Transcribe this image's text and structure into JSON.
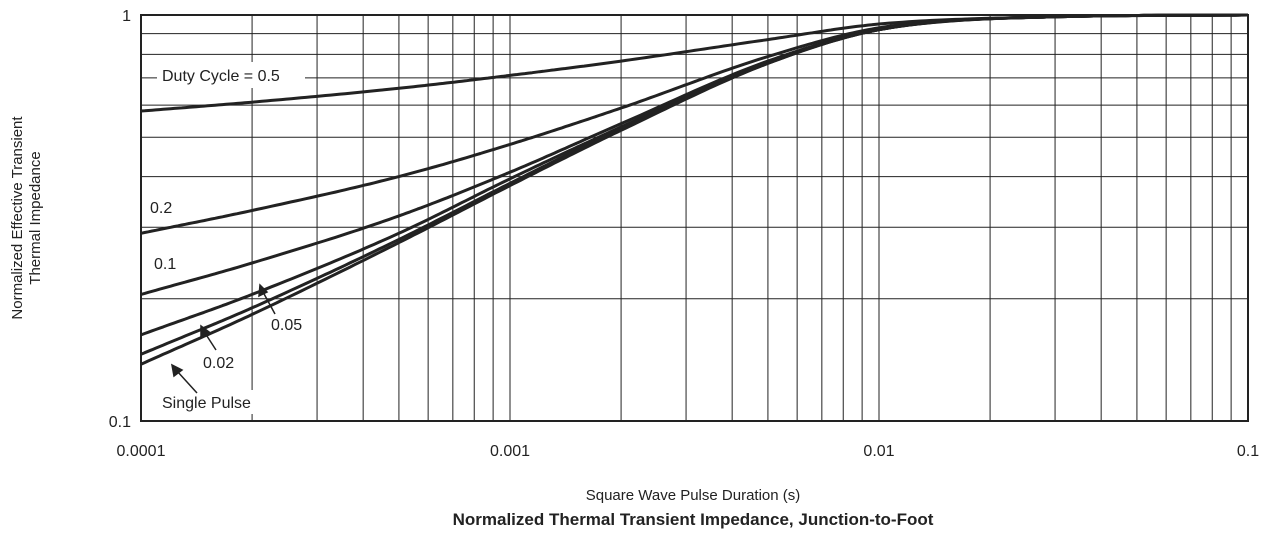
{
  "chart_data": {
    "type": "line",
    "title": "Normalized Thermal Transient Impedance, Junction-to-Foot",
    "xlabel": "Square Wave Pulse Duration (s)",
    "ylabel_line1": "Normalized Effective Transient",
    "ylabel_line2": "Thermal Impedance",
    "x_scale": "log",
    "y_scale": "log",
    "xlim": [
      0.0001,
      0.1
    ],
    "ylim": [
      0.1,
      1
    ],
    "grid": true,
    "x_ticks": [
      {
        "value": 0.0001,
        "label": "0.0001"
      },
      {
        "value": 0.001,
        "label": "0.001"
      },
      {
        "value": 0.01,
        "label": "0.01"
      },
      {
        "value": 0.1,
        "label": "0.1"
      }
    ],
    "y_ticks": [
      {
        "value": 0.1,
        "label": "0.1"
      },
      {
        "value": 1,
        "label": "1"
      }
    ],
    "series": [
      {
        "name": "Duty Cycle = 0.5",
        "x": [
          0.0001,
          0.0002,
          0.0005,
          0.001,
          0.002,
          0.005,
          0.01,
          0.03,
          0.1
        ],
        "y": [
          0.58,
          0.61,
          0.66,
          0.71,
          0.77,
          0.87,
          0.95,
          0.99,
          1.0
        ]
      },
      {
        "name": "0.2",
        "x": [
          0.0001,
          0.0002,
          0.0005,
          0.001,
          0.002,
          0.005,
          0.01,
          0.03,
          0.1
        ],
        "y": [
          0.29,
          0.33,
          0.4,
          0.48,
          0.59,
          0.79,
          0.93,
          0.99,
          1.0
        ]
      },
      {
        "name": "0.1",
        "x": [
          0.0001,
          0.0002,
          0.0005,
          0.001,
          0.002,
          0.005,
          0.01,
          0.03,
          0.1
        ],
        "y": [
          0.205,
          0.245,
          0.32,
          0.41,
          0.54,
          0.77,
          0.92,
          0.99,
          1.0
        ]
      },
      {
        "name": "0.05",
        "x": [
          0.0001,
          0.0002,
          0.0005,
          0.001,
          0.002,
          0.005,
          0.01,
          0.03,
          0.1
        ],
        "y": [
          0.163,
          0.205,
          0.29,
          0.395,
          0.53,
          0.765,
          0.92,
          0.99,
          1.0
        ]
      },
      {
        "name": "0.02",
        "x": [
          0.0001,
          0.0002,
          0.0005,
          0.001,
          0.002,
          0.005,
          0.01,
          0.03,
          0.1
        ],
        "y": [
          0.146,
          0.19,
          0.28,
          0.385,
          0.525,
          0.76,
          0.92,
          0.99,
          1.0
        ]
      },
      {
        "name": "Single Pulse",
        "x": [
          0.0001,
          0.0002,
          0.0005,
          0.001,
          0.002,
          0.005,
          0.01,
          0.03,
          0.1
        ],
        "y": [
          0.138,
          0.183,
          0.275,
          0.38,
          0.52,
          0.76,
          0.92,
          0.99,
          1.0
        ]
      }
    ],
    "annotations": [
      {
        "text": "Duty Cycle = 0.5",
        "series": "Duty Cycle = 0.5"
      },
      {
        "text": "0.2",
        "series": "0.2"
      },
      {
        "text": "0.1",
        "series": "0.1"
      },
      {
        "text": "0.05",
        "series": "0.05",
        "arrow": true
      },
      {
        "text": "0.02",
        "series": "0.02",
        "arrow": true
      },
      {
        "text": "Single Pulse",
        "series": "Single Pulse",
        "arrow": true
      }
    ],
    "colors": {
      "line": "#222222",
      "grid": "#222222",
      "background": "#ffffff"
    }
  }
}
